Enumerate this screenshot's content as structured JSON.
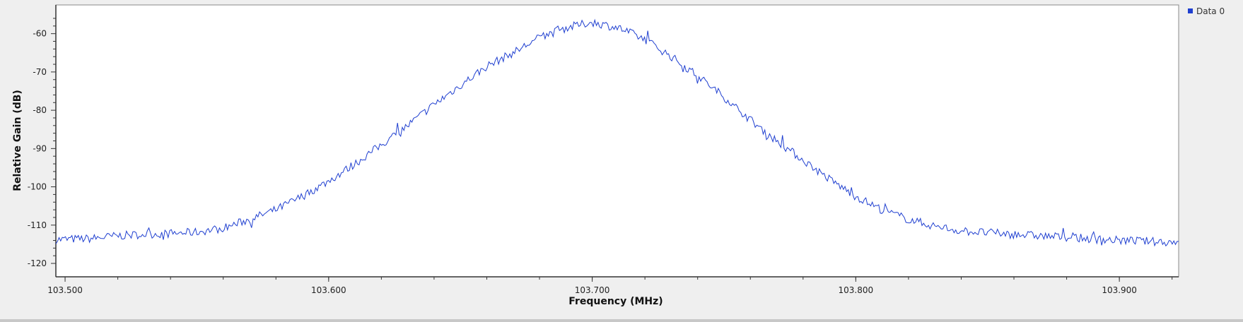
{
  "chart_data": {
    "type": "line",
    "xlabel": "Frequency (MHz)",
    "ylabel": "Relative Gain (dB)",
    "xlim": [
      103.4965,
      103.9225
    ],
    "ylim": [
      -123.5,
      -52.5
    ],
    "x_ticks": [
      103.5,
      103.6,
      103.7,
      103.8,
      103.9
    ],
    "x_tick_labels": [
      "103.500",
      "103.600",
      "103.700",
      "103.800",
      "103.900"
    ],
    "x_minor_step": 0.02,
    "y_ticks": [
      -60,
      -70,
      -80,
      -90,
      -100,
      -110,
      -120
    ],
    "y_tick_labels": [
      "-60",
      "-70",
      "-80",
      "-90",
      "-100",
      "-110",
      "-120"
    ],
    "grid": false,
    "legend_position": "top-right",
    "series": [
      {
        "name": "Data 0",
        "color": "#1f3fd0",
        "x": [
          103.4965,
          103.51,
          103.52,
          103.53,
          103.54,
          103.55,
          103.56,
          103.57,
          103.58,
          103.59,
          103.6,
          103.61,
          103.62,
          103.63,
          103.64,
          103.65,
          103.66,
          103.67,
          103.68,
          103.69,
          103.7,
          103.71,
          103.72,
          103.73,
          103.74,
          103.75,
          103.76,
          103.77,
          103.78,
          103.79,
          103.8,
          103.81,
          103.82,
          103.83,
          103.84,
          103.85,
          103.86,
          103.87,
          103.88,
          103.89,
          103.9,
          103.91,
          103.9225
        ],
        "y": [
          -113.8,
          -113.5,
          -112.8,
          -112.4,
          -112.2,
          -111.8,
          -110.8,
          -108.5,
          -106,
          -102.5,
          -98.5,
          -94,
          -89,
          -84,
          -78.5,
          -73.5,
          -68.5,
          -65,
          -61,
          -58.5,
          -57,
          -58.5,
          -61.5,
          -66,
          -71,
          -76.5,
          -82.5,
          -88,
          -93,
          -98,
          -102.5,
          -106,
          -108.5,
          -110.3,
          -111.5,
          -112,
          -112.4,
          -112.8,
          -113.2,
          -113.6,
          -114,
          -114.2,
          -114.5
        ]
      }
    ]
  }
}
